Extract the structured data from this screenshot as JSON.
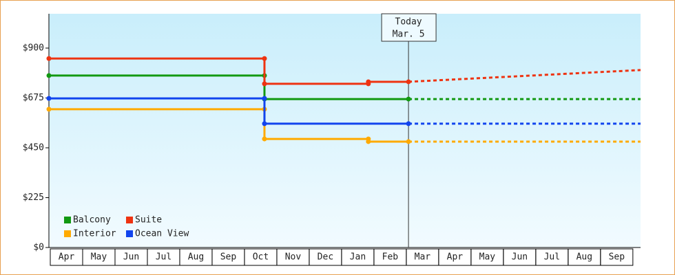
{
  "chart_data": {
    "type": "line",
    "ylim": [
      0,
      1055
    ],
    "yticks": [
      {
        "value": 0,
        "label": "$0"
      },
      {
        "value": 225,
        "label": "$225"
      },
      {
        "value": 450,
        "label": "$450"
      },
      {
        "value": 675,
        "label": "$675"
      },
      {
        "value": 900,
        "label": "$900"
      }
    ],
    "xlim": [
      0,
      18.28
    ],
    "xticks": [
      {
        "value": 0.5,
        "label": "Apr"
      },
      {
        "value": 1.5,
        "label": "May"
      },
      {
        "value": 2.5,
        "label": "Jun"
      },
      {
        "value": 3.5,
        "label": "Jul"
      },
      {
        "value": 4.5,
        "label": "Aug"
      },
      {
        "value": 5.5,
        "label": "Sep"
      },
      {
        "value": 6.5,
        "label": "Oct"
      },
      {
        "value": 7.5,
        "label": "Nov"
      },
      {
        "value": 8.5,
        "label": "Dec"
      },
      {
        "value": 9.5,
        "label": "Jan"
      },
      {
        "value": 10.5,
        "label": "Feb"
      },
      {
        "value": 11.5,
        "label": "Mar"
      },
      {
        "value": 12.5,
        "label": "Apr"
      },
      {
        "value": 13.5,
        "label": "May"
      },
      {
        "value": 14.5,
        "label": "Jun"
      },
      {
        "value": 15.5,
        "label": "Jul"
      },
      {
        "value": 16.5,
        "label": "Aug"
      },
      {
        "value": 17.5,
        "label": "Sep"
      }
    ],
    "legend": "lower left",
    "annotation": {
      "x": 11.11,
      "lines": [
        "Today",
        "Mar. 5"
      ]
    },
    "series": [
      {
        "name": "Balcony",
        "color": "#119911",
        "x": [
          0,
          6.66,
          6.66,
          11.11
        ],
        "values": [
          776,
          776,
          670,
          670
        ],
        "forecast": {
          "x": [
            11.11,
            18.28
          ],
          "values": [
            670,
            670
          ]
        }
      },
      {
        "name": "Suite",
        "color": "#ee3311",
        "x": [
          0,
          6.66,
          6.66,
          9.87,
          9.87,
          11.11
        ],
        "values": [
          853,
          853,
          739,
          739,
          748,
          748
        ],
        "forecast": {
          "x": [
            11.11,
            18.28
          ],
          "values": [
            748,
            801
          ]
        }
      },
      {
        "name": "Interior",
        "color": "#ffaa00",
        "x": [
          0,
          6.66,
          6.66,
          9.87,
          9.87,
          11.11
        ],
        "values": [
          624,
          624,
          490,
          490,
          478,
          478
        ],
        "forecast": {
          "x": [
            11.11,
            18.28
          ],
          "values": [
            478,
            478
          ]
        }
      },
      {
        "name": "Ocean View",
        "color": "#1144ee",
        "x": [
          0,
          6.66,
          6.66,
          11.11
        ],
        "values": [
          673,
          673,
          559,
          559
        ],
        "forecast": {
          "x": [
            11.11,
            18.28
          ],
          "values": [
            559,
            559
          ]
        }
      }
    ]
  }
}
